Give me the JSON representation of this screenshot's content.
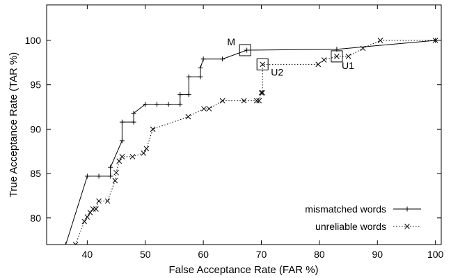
{
  "chart_data": {
    "type": "line",
    "xlabel": "False Acceptance Rate (FAR %)",
    "ylabel": "True Acceptance Rate (TAR %)",
    "xlim": [
      33,
      101
    ],
    "ylim": [
      77,
      104
    ],
    "xticks": [
      40,
      50,
      60,
      70,
      80,
      90,
      100
    ],
    "yticks": [
      80,
      85,
      90,
      95,
      100
    ],
    "grid": false,
    "legend_position": "bottom-right",
    "series": [
      {
        "name": "mismatched words",
        "line_style": "solid",
        "marker": "plus",
        "x": [
          36.3,
          40.0,
          42.0,
          44.0,
          44.0,
          46.0,
          46.0,
          48.0,
          48.0,
          50.0,
          52.0,
          54.0,
          56.0,
          56.0,
          57.5,
          57.5,
          59.5,
          59.5,
          60.0,
          63.3,
          67.5,
          83.0,
          100.0
        ],
        "y": [
          77.0,
          84.7,
          84.7,
          84.7,
          85.7,
          88.7,
          90.8,
          90.8,
          91.8,
          92.8,
          92.8,
          92.8,
          92.8,
          93.9,
          93.9,
          95.9,
          95.9,
          96.9,
          97.9,
          97.9,
          98.9,
          99.0,
          100.0
        ]
      },
      {
        "name": "unreliable words",
        "line_style": "dotted",
        "marker": "x",
        "x": [
          38.0,
          39.5,
          40.0,
          40.5,
          41.0,
          41.5,
          42.0,
          43.5,
          44.8,
          45.0,
          45.5,
          46.0,
          47.8,
          49.7,
          50.2,
          51.3,
          57.4,
          60.1,
          61.0,
          63.3,
          67.0,
          69.2,
          69.6,
          70.0,
          70.2,
          70.2,
          79.8,
          80.8,
          83.0,
          85.0,
          87.5,
          90.5,
          100.0
        ],
        "y": [
          77.0,
          79.6,
          80.1,
          80.6,
          81.0,
          81.0,
          81.9,
          81.9,
          84.2,
          85.1,
          86.4,
          86.9,
          86.9,
          87.3,
          87.8,
          90.0,
          91.4,
          92.3,
          92.3,
          93.2,
          93.2,
          93.2,
          93.2,
          94.1,
          94.1,
          97.3,
          97.3,
          97.8,
          98.2,
          98.2,
          99.1,
          100.0,
          100.0
        ]
      }
    ],
    "highlighted_points": [
      {
        "label": "M",
        "x": 67.2,
        "y": 98.9
      },
      {
        "label": "U2",
        "x": 70.2,
        "y": 97.3
      },
      {
        "label": "U1",
        "x": 83.0,
        "y": 98.2
      }
    ]
  }
}
